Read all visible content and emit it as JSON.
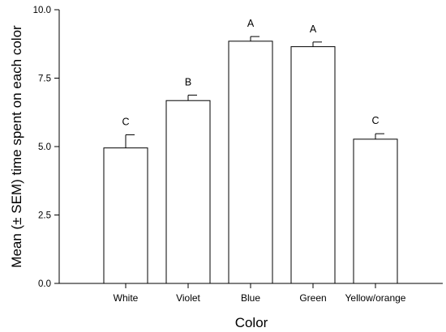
{
  "chart_data": {
    "type": "bar",
    "title": "",
    "xlabel": "Color",
    "ylabel": "Mean (± SEM) time spent on each color",
    "ylim": [
      0,
      10
    ],
    "yticks": [
      "0.0",
      "2.5",
      "5.0",
      "7.5",
      "10.0"
    ],
    "categories": [
      "White",
      "Violet",
      "Blue",
      "Green",
      "Yellow/orange"
    ],
    "values": [
      4.95,
      6.68,
      8.85,
      8.65,
      5.27
    ],
    "sem": [
      0.48,
      0.2,
      0.17,
      0.17,
      0.2
    ],
    "significance_letters": [
      "C",
      "B",
      "A",
      "A",
      "C"
    ],
    "grid": false,
    "bar_fill": "#ffffff",
    "bar_stroke": "#000000"
  }
}
